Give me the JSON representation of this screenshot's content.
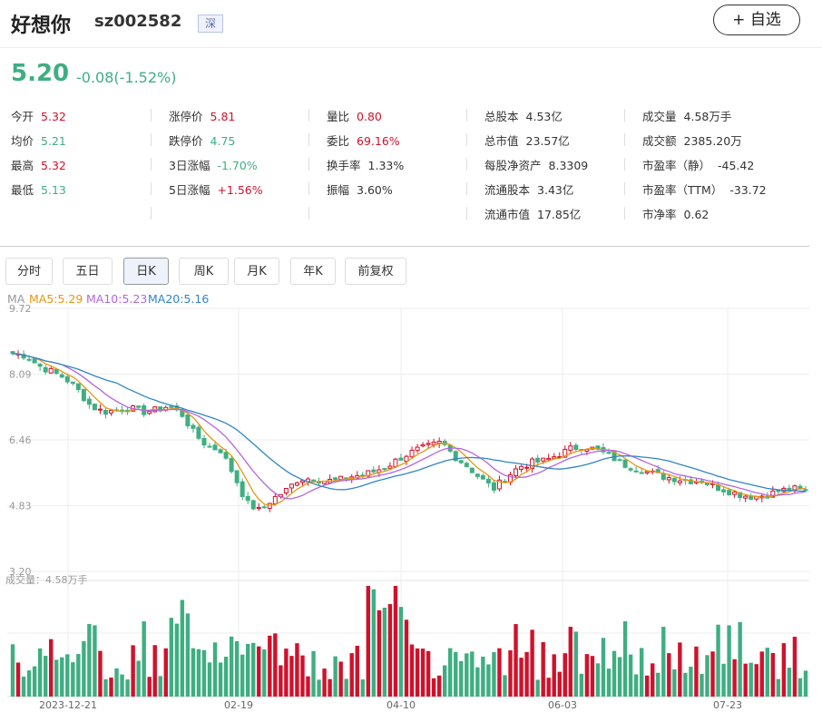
{
  "header": {
    "name": "好想你",
    "code": "sz002582",
    "market": "深",
    "add_button": "+ 自选"
  },
  "quote": {
    "price": "5.20",
    "change": "-0.08(-1.52%)"
  },
  "stats": [
    {
      "label": "今开",
      "value": "5.32",
      "color": "red"
    },
    {
      "label": "均价",
      "value": "5.21",
      "color": "green"
    },
    {
      "label": "最高",
      "value": "5.32",
      "color": "red"
    },
    {
      "label": "最低",
      "value": "5.13",
      "color": "green"
    },
    {
      "label": "涨停价",
      "value": "5.81",
      "color": "red"
    },
    {
      "label": "跌停价",
      "value": "4.75",
      "color": "green"
    },
    {
      "label": "3日涨幅",
      "value": "-1.70%",
      "color": "green"
    },
    {
      "label": "5日涨幅",
      "value": "+1.56%",
      "color": "red"
    },
    {
      "label": "量比",
      "value": "0.80",
      "color": "red"
    },
    {
      "label": "委比",
      "value": "69.16%",
      "color": "red"
    },
    {
      "label": "换手率",
      "value": "1.33%",
      "color": "plain"
    },
    {
      "label": "振幅",
      "value": "3.60%",
      "color": "plain"
    },
    {
      "label": "总股本",
      "value": "4.53亿",
      "color": "plain"
    },
    {
      "label": "总市值",
      "value": "23.57亿",
      "color": "plain"
    },
    {
      "label": "每股净资产",
      "value": "8.3309",
      "color": "plain"
    },
    {
      "label": "流通股本",
      "value": "3.43亿",
      "color": "plain"
    },
    {
      "label": "流通市值",
      "value": "17.85亿",
      "color": "plain"
    },
    {
      "label": "成交量",
      "value": "4.58万手",
      "color": "plain"
    },
    {
      "label": "成交额",
      "value": "2385.20万",
      "color": "plain"
    },
    {
      "label": "市盈率（静）",
      "value": "-45.42",
      "color": "plain"
    },
    {
      "label": "市盈率（TTM）",
      "value": "-33.72",
      "color": "plain"
    },
    {
      "label": "市净率",
      "value": "0.62",
      "color": "plain"
    }
  ],
  "tabs": [
    "分时",
    "五日",
    "日K",
    "周K",
    "月K",
    "年K",
    "前复权"
  ],
  "active_tab": "日K",
  "ma_legend": {
    "label": "MA",
    "ma5": "MA5:5.29",
    "ma10": "MA10:5.23",
    "ma20": "MA20:5.16"
  },
  "volume_label": "成交量：4.58万手",
  "colors": {
    "up": "#d0112b",
    "down": "#3fae82",
    "ma5": "#e8960f",
    "ma10": "#b266e0",
    "ma20": "#2f86c3"
  },
  "chart_data": {
    "type": "candlestick",
    "y_ticks": [
      "9.72",
      "8.09",
      "6.46",
      "4.83",
      "3.20"
    ],
    "ylim": [
      3.2,
      9.72
    ],
    "x_ticks": [
      "2023-12-21",
      "02-19",
      "04-10",
      "06-03",
      "07-23"
    ],
    "ma_series": [
      {
        "name": "MA5",
        "last": 5.29
      },
      {
        "name": "MA10",
        "last": 5.23
      },
      {
        "name": "MA20",
        "last": 5.16
      }
    ],
    "last_volume": "4.58万手",
    "close_path": [
      8.6,
      8.55,
      8.3,
      8.15,
      8.0,
      7.7,
      7.3,
      7.15,
      7.2,
      7.25,
      7.15,
      7.2,
      7.3,
      7.1,
      6.6,
      6.3,
      6.2,
      5.6,
      4.9,
      4.7,
      5.0,
      5.2,
      5.5,
      5.5,
      5.45,
      5.45,
      5.55,
      5.6,
      5.7,
      5.85,
      6.05,
      6.2,
      6.3,
      6.4,
      6.05,
      5.8,
      5.5,
      5.25,
      5.55,
      5.8,
      5.9,
      5.95,
      6.1,
      6.25,
      6.3,
      6.2,
      6.05,
      5.85,
      5.75,
      5.65,
      5.55,
      5.5,
      5.45,
      5.45,
      5.3,
      5.2,
      5.1,
      5.05,
      5.1,
      5.2,
      5.25,
      5.2
    ]
  }
}
